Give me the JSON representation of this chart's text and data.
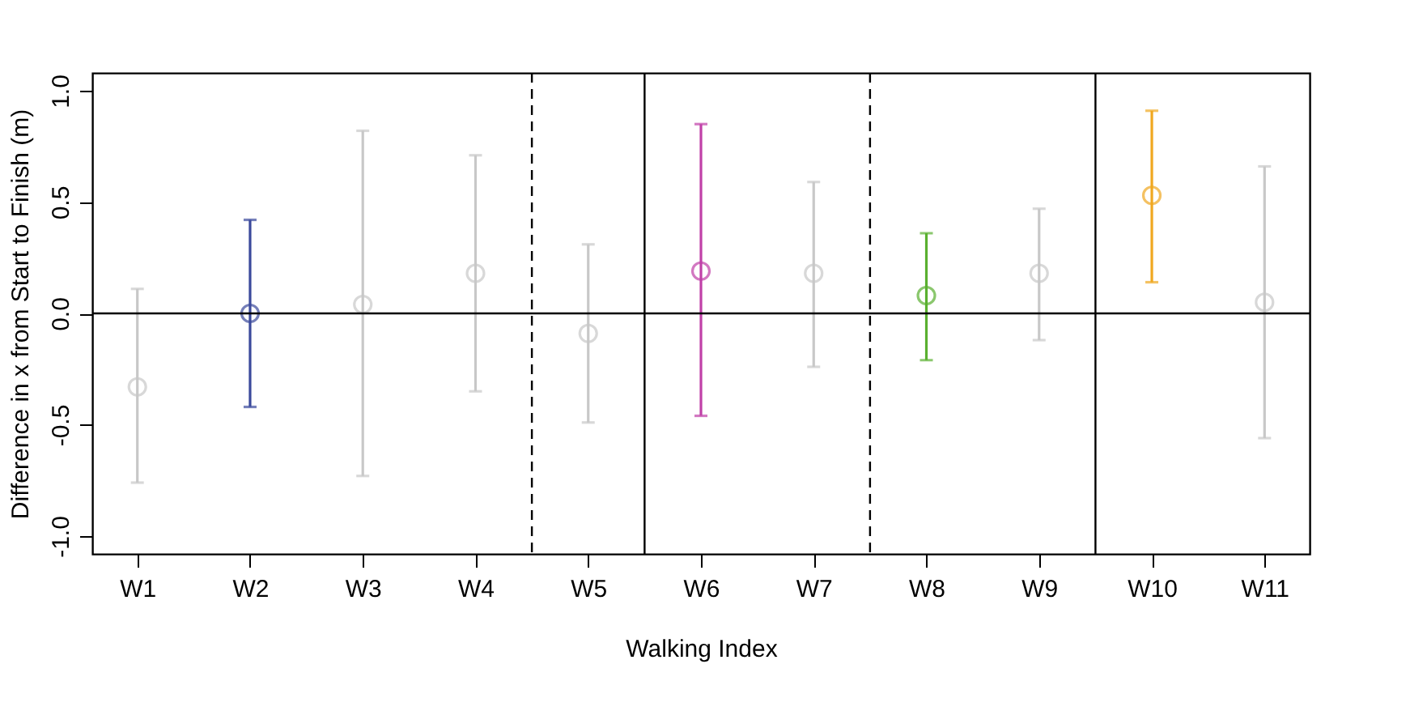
{
  "chart_data": {
    "type": "scatter",
    "xlabel": "Walking Index",
    "ylabel": "Difference in x from Start to Finish (m)",
    "categories": [
      "W1",
      "W2",
      "W3",
      "W4",
      "W5",
      "W6",
      "W7",
      "W8",
      "W9",
      "W10",
      "W11"
    ],
    "values": [
      -0.33,
      0.0,
      0.04,
      0.18,
      -0.09,
      0.19,
      0.18,
      0.08,
      0.18,
      0.53,
      0.05
    ],
    "errors": [
      [
        -0.76,
        0.11
      ],
      [
        -0.42,
        0.42
      ],
      [
        -0.73,
        0.82
      ],
      [
        -0.35,
        0.71
      ],
      [
        -0.49,
        0.31
      ],
      [
        -0.46,
        0.85
      ],
      [
        -0.24,
        0.59
      ],
      [
        -0.21,
        0.36
      ],
      [
        -0.12,
        0.47
      ],
      [
        0.14,
        0.91
      ],
      [
        -0.56,
        0.66
      ]
    ],
    "colors": [
      "#c8c8c8",
      "#3b4a9c",
      "#c8c8c8",
      "#c8c8c8",
      "#c8c8c8",
      "#c040a8",
      "#c8c8c8",
      "#5ab030",
      "#c8c8c8",
      "#f0a820",
      "#c8c8c8"
    ],
    "ylim": [
      -1.08,
      1.08
    ],
    "yticks": [
      {
        "value": -1,
        "label": "-1.0"
      },
      {
        "value": -0.5,
        "label": "-0.5"
      },
      {
        "value": 0,
        "label": "0.0"
      },
      {
        "value": 0.5,
        "label": "0.5"
      },
      {
        "value": 1,
        "label": "1.0"
      }
    ],
    "ref_lines": [
      {
        "axis": "y",
        "value": 0,
        "color": "#000000",
        "line_style": "solid"
      }
    ],
    "marker": "circle",
    "grid": false
  }
}
